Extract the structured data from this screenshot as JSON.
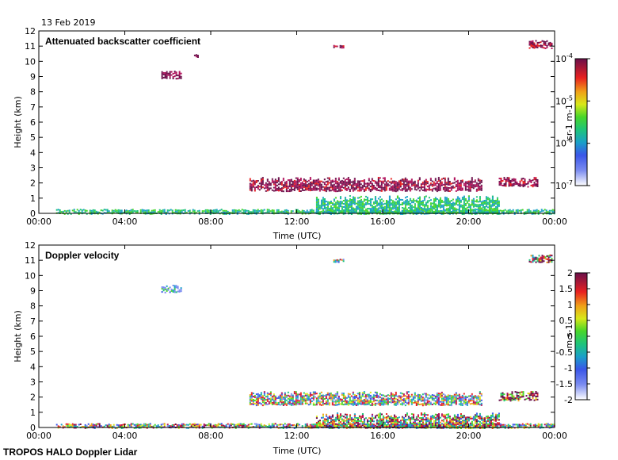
{
  "date": "13 Feb 2019",
  "footer": "TROPOS HALO Doppler Lidar",
  "chart_data": [
    {
      "type": "heatmap",
      "title": "Attenuated backscatter coefficient",
      "xlabel": "Time (UTC)",
      "ylabel": "Height (km)",
      "x_ticks": [
        "00:00",
        "04:00",
        "08:00",
        "12:00",
        "16:00",
        "20:00",
        "00:00"
      ],
      "y_ticks": [
        "0",
        "1",
        "2",
        "3",
        "4",
        "5",
        "6",
        "7",
        "8",
        "9",
        "10",
        "11",
        "12"
      ],
      "xlim_hours": [
        0,
        24
      ],
      "ylim_km": [
        0,
        12
      ],
      "colorbar": {
        "label": "sr-1 m-1",
        "scale": "log",
        "ticks": [
          "10-7",
          "10-6",
          "10-5",
          "10-4"
        ],
        "range": [
          1e-07,
          0.0001
        ]
      },
      "features": [
        {
          "name": "boundary-layer aerosol",
          "t_start": 0.8,
          "t_end": 24.0,
          "h_bottom": 0.0,
          "h_top": 0.3,
          "level": 0.35
        },
        {
          "name": "aerosol plume",
          "t_start": 12.9,
          "t_end": 21.4,
          "h_bottom": 0.0,
          "h_top": 1.2,
          "level": 0.35
        },
        {
          "name": "cloud layer",
          "t_start": 9.8,
          "t_end": 20.6,
          "h_bottom": 1.5,
          "h_top": 2.4,
          "level": 0.9
        },
        {
          "name": "cloud layer",
          "t_start": 21.4,
          "t_end": 23.2,
          "h_bottom": 1.8,
          "h_top": 2.4,
          "level": 0.9
        },
        {
          "name": "cirrus patch",
          "t_start": 5.7,
          "t_end": 6.6,
          "h_bottom": 8.9,
          "h_top": 9.4,
          "level": 0.95
        },
        {
          "name": "cirrus patch",
          "t_start": 7.0,
          "t_end": 7.4,
          "h_bottom": 10.3,
          "h_top": 10.5,
          "level": 0.9
        },
        {
          "name": "cirrus patch",
          "t_start": 13.7,
          "t_end": 14.2,
          "h_bottom": 10.9,
          "h_top": 11.1,
          "level": 0.9
        },
        {
          "name": "cirrus patch",
          "t_start": 22.8,
          "t_end": 23.9,
          "h_bottom": 10.9,
          "h_top": 11.4,
          "level": 0.9
        }
      ]
    },
    {
      "type": "heatmap",
      "title": "Doppler velocity",
      "xlabel": "Time (UTC)",
      "ylabel": "Height (km)",
      "x_ticks": [
        "00:00",
        "04:00",
        "08:00",
        "12:00",
        "16:00",
        "20:00",
        "00:00"
      ],
      "y_ticks": [
        "0",
        "1",
        "2",
        "3",
        "4",
        "5",
        "6",
        "7",
        "8",
        "9",
        "10",
        "11",
        "12"
      ],
      "xlim_hours": [
        0,
        24
      ],
      "ylim_km": [
        0,
        12
      ],
      "colorbar": {
        "label": "m s-1",
        "scale": "linear",
        "ticks": [
          "-2",
          "-1.5",
          "-1",
          "-0.5",
          "0",
          "0.5",
          "1",
          "1.5",
          "2"
        ],
        "range": [
          -2,
          2
        ]
      },
      "features": [
        {
          "name": "boundary-layer signal",
          "t_start": 0.8,
          "t_end": 24.0,
          "h_bottom": 0.0,
          "h_top": 0.3,
          "level": 0.5
        },
        {
          "name": "convective updrafts",
          "t_start": 12.9,
          "t_end": 21.4,
          "h_bottom": 0.0,
          "h_top": 1.0,
          "level": 0.6
        },
        {
          "name": "cloud layer",
          "t_start": 9.8,
          "t_end": 20.6,
          "h_bottom": 1.5,
          "h_top": 2.4,
          "level": 0.45
        },
        {
          "name": "cloud layer",
          "t_start": 21.4,
          "t_end": 23.2,
          "h_bottom": 1.8,
          "h_top": 2.4,
          "level": 0.8
        },
        {
          "name": "cirrus patch",
          "t_start": 5.7,
          "t_end": 6.6,
          "h_bottom": 8.9,
          "h_top": 9.4,
          "level": 0.15
        },
        {
          "name": "cirrus patch",
          "t_start": 13.7,
          "t_end": 14.2,
          "h_bottom": 10.9,
          "h_top": 11.1,
          "level": 0.4
        },
        {
          "name": "cirrus patch",
          "t_start": 22.8,
          "t_end": 23.9,
          "h_bottom": 10.9,
          "h_top": 11.4,
          "level": 0.7
        }
      ]
    }
  ]
}
